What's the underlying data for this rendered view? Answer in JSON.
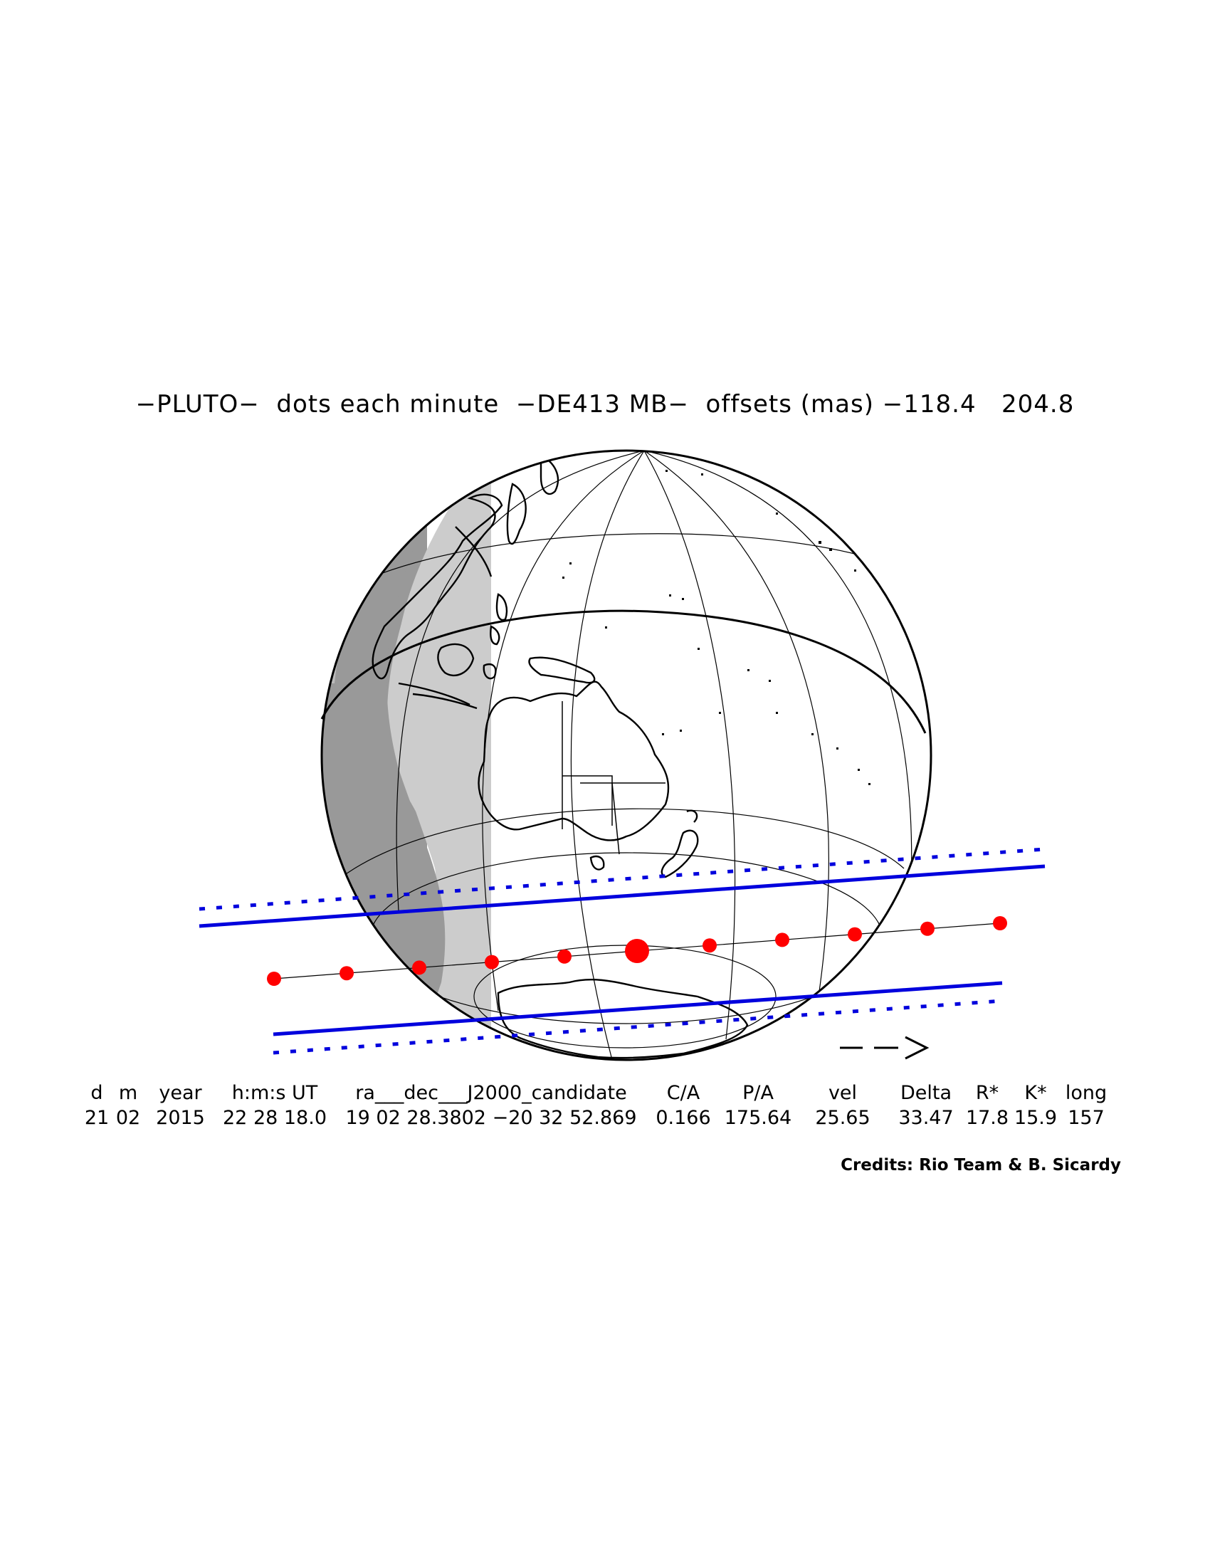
{
  "title": "−PLUTO−  dots each minute  −DE413 MB−  offsets (mas) −118.4   204.8",
  "direction_arrow": "− −>",
  "table": {
    "headers": [
      "d",
      "m",
      "year",
      "h:m:s UT",
      "ra___dec___J2000_candidate",
      "C/A",
      "P/A",
      "vel",
      "Delta",
      "R*",
      "K*",
      "long"
    ],
    "values": [
      "21",
      "02",
      "2015",
      "22 28 18.0",
      "19 02 28.3802 −20 32 52.869",
      "0.166",
      "175.64",
      "25.65",
      "33.47",
      "17.8",
      "15.9",
      "157"
    ]
  },
  "credits": "Credits: Rio Team & B. Sicardy",
  "colors": {
    "path_dot": "#ff0000",
    "shadow_limit": "#0000dd",
    "night": "#999999",
    "twilight": "#cccccc"
  },
  "minute_dots": 11,
  "central_dot_index": 5
}
